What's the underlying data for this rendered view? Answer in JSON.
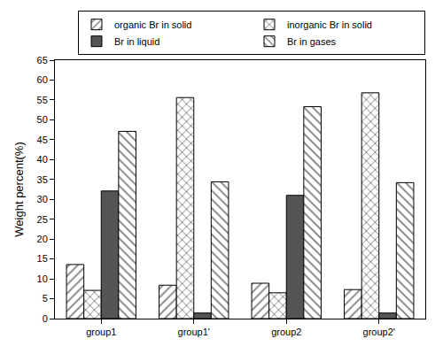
{
  "chart_data": {
    "type": "bar",
    "y_label": "Weight percent(%)",
    "categories": [
      "group1",
      "group1'",
      "group2",
      "group2'"
    ],
    "series": [
      {
        "name": "organic Br in solid",
        "color": "#000000",
        "marker": "hatch_forward",
        "values": [
          13.6,
          8.4,
          8.9,
          7.3
        ]
      },
      {
        "name": "inorganic Br in solid",
        "color": "#000000",
        "marker": "crosshatch",
        "values": [
          7.1,
          55.6,
          6.5,
          56.8
        ]
      },
      {
        "name": "Br in liquid",
        "color": "#555555",
        "marker": "solid",
        "values": [
          32.1,
          1.4,
          31.0,
          1.4
        ]
      },
      {
        "name": "Br in gases",
        "color": "#000000",
        "marker": "hatch_back",
        "values": [
          47.1,
          34.4,
          53.3,
          34.2
        ]
      }
    ],
    "ylim": [
      0,
      65
    ],
    "yticks": [
      0,
      5,
      10,
      15,
      20,
      25,
      30,
      35,
      40,
      45,
      50,
      55,
      60,
      65
    ],
    "grid": false,
    "legend": "top right"
  }
}
